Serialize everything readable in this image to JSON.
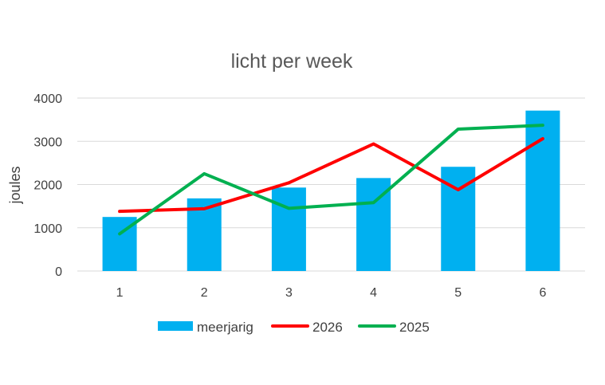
{
  "chart_data": {
    "type": "bar",
    "title": "licht per week",
    "xlabel": "",
    "ylabel": "joules",
    "categories": [
      "1",
      "2",
      "3",
      "4",
      "5",
      "6"
    ],
    "ylim": [
      0,
      4000
    ],
    "yticks": [
      "0",
      "1000",
      "2000",
      "3000",
      "4000"
    ],
    "grid": true,
    "legend_position": "bottom",
    "series": [
      {
        "name": "meerjarig",
        "kind": "bar",
        "color": "#00B0F0",
        "values": [
          1250,
          1680,
          1930,
          2150,
          2410,
          3710
        ]
      },
      {
        "name": "2026",
        "kind": "line",
        "color": "#FF0000",
        "values": [
          1380,
          1440,
          2040,
          2940,
          1880,
          3060
        ]
      },
      {
        "name": "2025",
        "kind": "line",
        "color": "#00B050",
        "values": [
          860,
          2250,
          1450,
          1580,
          3280,
          3370
        ]
      }
    ]
  }
}
